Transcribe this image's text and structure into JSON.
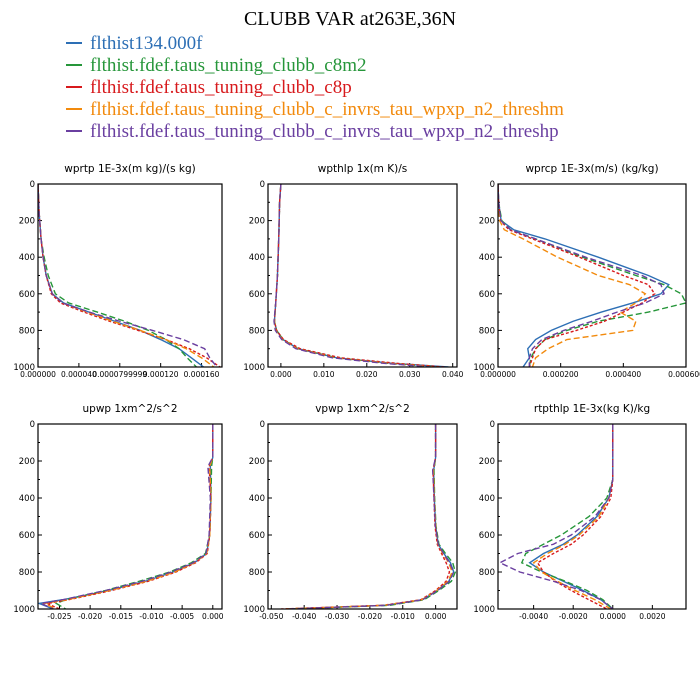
{
  "title": "CLUBB VAR at263E,36N",
  "colors": {
    "blue": "#2d6fb5",
    "green": "#26963a",
    "red": "#d7191c",
    "orange": "#f28a0d",
    "purple": "#6a3fa0"
  },
  "legend": [
    {
      "label": "flthist134.000f",
      "color": "#2d6fb5"
    },
    {
      "label": "flthist.fdef.taus_tuning_clubb_c8m2",
      "color": "#26963a"
    },
    {
      "label": "flthist.fdef.taus_tuning_clubb_c8p",
      "color": "#d7191c"
    },
    {
      "label": "flthist.fdef.taus_tuning_clubb_c_invrs_tau_wpxp_n2_threshm",
      "color": "#f28a0d"
    },
    {
      "label": "flthist.fdef.taus_tuning_clubb_c_invrs_tau_wpxp_n2_threshp",
      "color": "#6a3fa0"
    }
  ],
  "chart_data": [
    {
      "type": "line",
      "title": "wprtp  1E-3x(m kg)/(s kg)",
      "xlim": [
        0,
        0.00018
      ],
      "ylim": [
        1000,
        0
      ],
      "yticks": [
        "0",
        "200",
        "400",
        "600",
        "800",
        "1000"
      ],
      "xticks": [
        0,
        4e-05,
        8e-05,
        0.00012,
        0.00016
      ],
      "xtick_labels": [
        "0.000000",
        "0.000040",
        "0.0000799999",
        "0.000120",
        "0.000160"
      ],
      "y": [
        0,
        150,
        300,
        400,
        500,
        600,
        650,
        700,
        750,
        800,
        850,
        900,
        950,
        1000
      ],
      "series": [
        {
          "color": "#2d6fb5",
          "values": [
            0,
            1e-06,
            3e-06,
            5e-06,
            8e-06,
            1.4e-05,
            2.5e-05,
            5e-05,
            7.5e-05,
            0.0001,
            0.00012,
            0.000138,
            0.00015,
            0.000162
          ]
        },
        {
          "color": "#26963a",
          "values": [
            0,
            1e-06,
            3e-06,
            6e-06,
            1e-05,
            1.7e-05,
            3e-05,
            5.8e-05,
            8.5e-05,
            0.000108,
            0.000125,
            0.000138,
            0.000146,
            0.000155
          ]
        },
        {
          "color": "#d7191c",
          "values": [
            0,
            1e-06,
            3e-06,
            5e-06,
            8e-06,
            1.3e-05,
            2.2e-05,
            4.5e-05,
            7e-05,
            9.8e-05,
            0.000125,
            0.000148,
            0.000165,
            0.000178
          ]
        },
        {
          "color": "#f28a0d",
          "values": [
            0,
            1e-06,
            3e-06,
            5e-06,
            8e-06,
            1.4e-05,
            2.4e-05,
            4.8e-05,
            7.3e-05,
            0.0001,
            0.000125,
            0.000145,
            0.00016,
            0.000172
          ]
        },
        {
          "color": "#6a3fa0",
          "values": [
            0,
            1e-06,
            3e-06,
            5e-06,
            8e-06,
            1.4e-05,
            2.4e-05,
            5e-05,
            8e-05,
            0.000112,
            0.000142,
            0.000163,
            0.000168,
            0.000175
          ]
        }
      ]
    },
    {
      "type": "line",
      "title": "wpthlp  1x(m K)/s",
      "xlim": [
        -0.003,
        0.041
      ],
      "ylim": [
        1000,
        0
      ],
      "yticks": [
        "0",
        "200",
        "400",
        "600",
        "800",
        "1000"
      ],
      "xticks": [
        0,
        0.01,
        0.02,
        0.03,
        0.04
      ],
      "xtick_labels": [
        "0.000",
        "0.010",
        "0.020",
        "0.030",
        "0.040"
      ],
      "y": [
        0,
        100,
        300,
        500,
        650,
        750,
        800,
        850,
        900,
        950,
        980,
        1000
      ],
      "series": [
        {
          "color": "#2d6fb5",
          "values": [
            0,
            -0.0003,
            -0.0005,
            -0.0008,
            -0.0012,
            -0.0015,
            -0.001,
            0.0005,
            0.004,
            0.013,
            0.026,
            0.039
          ]
        },
        {
          "color": "#26963a",
          "values": [
            0,
            -0.0003,
            -0.0005,
            -0.0008,
            -0.0012,
            -0.0015,
            -0.001,
            0.0005,
            0.004,
            0.013,
            0.025,
            0.037
          ]
        },
        {
          "color": "#d7191c",
          "values": [
            0,
            -0.0003,
            -0.0005,
            -0.0008,
            -0.0012,
            -0.0015,
            -0.001,
            0.0006,
            0.0045,
            0.014,
            0.027,
            0.038
          ]
        },
        {
          "color": "#f28a0d",
          "values": [
            0,
            -0.0003,
            -0.0005,
            -0.0008,
            -0.0012,
            -0.0015,
            -0.0012,
            0.0003,
            0.0038,
            0.0125,
            0.025,
            0.036
          ]
        },
        {
          "color": "#6a3fa0",
          "values": [
            0,
            -0.0003,
            -0.0005,
            -0.0008,
            -0.0012,
            -0.0016,
            -0.0013,
            0.0002,
            0.0035,
            0.012,
            0.024,
            0.035
          ]
        }
      ]
    },
    {
      "type": "line",
      "title": "wprcp  1E-3x(m/s) (kg/kg)",
      "xlim": [
        0,
        0.0006
      ],
      "ylim": [
        1000,
        0
      ],
      "yticks": [
        "0",
        "200",
        "400",
        "600",
        "800",
        "1000"
      ],
      "xticks": [
        0,
        0.0002,
        0.0004,
        0.0006
      ],
      "xtick_labels": [
        "0.000000",
        "0.000200",
        "0.000400",
        "0.000600"
      ],
      "y": [
        0,
        100,
        200,
        250,
        300,
        400,
        500,
        550,
        600,
        650,
        700,
        750,
        800,
        850,
        900,
        950,
        1000
      ],
      "series": [
        {
          "color": "#2d6fb5",
          "values": [
            0,
            2e-06,
            1e-05,
            5e-05,
            0.00015,
            0.00032,
            0.00048,
            0.000545,
            0.00052,
            0.00043,
            0.00033,
            0.00024,
            0.00017,
            0.00012,
            9.5e-05,
            0.0001,
            8e-05
          ]
        },
        {
          "color": "#26963a",
          "values": [
            0,
            2e-06,
            1.2e-05,
            4e-05,
            0.00012,
            0.00027,
            0.00044,
            0.00053,
            0.000585,
            0.0006,
            0.00048,
            0.00032,
            0.00022,
            0.00015,
            0.00012,
            0.000105,
            0.0001
          ]
        },
        {
          "color": "#d7191c",
          "values": [
            0,
            2e-06,
            8e-06,
            3.5e-05,
            0.00011,
            0.00026,
            0.0004,
            0.00048,
            0.0005,
            0.00046,
            0.0004,
            0.00034,
            0.00025,
            0.00015,
            0.00012,
            0.00011,
            0.0001
          ]
        },
        {
          "color": "#f28a0d",
          "values": [
            0,
            1e-06,
            5e-06,
            2e-05,
            8e-05,
            0.00019,
            0.00032,
            0.00042,
            0.00047,
            0.00044,
            0.00039,
            0.00044,
            0.00043,
            0.00022,
            0.00016,
            0.00012,
            0.00011
          ]
        },
        {
          "color": "#6a3fa0",
          "values": [
            0,
            2e-06,
            9e-06,
            4e-05,
            0.00012,
            0.00028,
            0.00046,
            0.00052,
            0.00053,
            0.00047,
            0.00038,
            0.0003,
            0.00021,
            0.00014,
            0.00011,
            0.0001,
            0.0001
          ]
        }
      ]
    },
    {
      "type": "line",
      "title": "upwp  1xm^2/s^2",
      "xlim": [
        -0.0285,
        0.0015
      ],
      "ylim": [
        1000,
        0
      ],
      "yticks": [
        "0",
        "200",
        "400",
        "600",
        "800",
        "1000"
      ],
      "xticks": [
        -0.025,
        -0.02,
        -0.015,
        -0.01,
        -0.005,
        0
      ],
      "xtick_labels": [
        "-0.025",
        "-0.020",
        "-0.015",
        "-0.010",
        "-0.005",
        "0.000"
      ],
      "y": [
        0,
        180,
        230,
        400,
        600,
        700,
        750,
        800,
        850,
        900,
        950,
        970,
        1000
      ],
      "series": [
        {
          "color": "#2d6fb5",
          "values": [
            0,
            0,
            -0.0004,
            -0.0003,
            -0.0005,
            -0.001,
            -0.003,
            -0.0065,
            -0.011,
            -0.017,
            -0.0245,
            -0.0283,
            -0.026
          ]
        },
        {
          "color": "#26963a",
          "values": [
            0,
            0,
            -0.0002,
            -0.0003,
            -0.0005,
            -0.0012,
            -0.0035,
            -0.007,
            -0.012,
            -0.0175,
            -0.024,
            -0.0255,
            -0.024
          ]
        },
        {
          "color": "#d7191c",
          "values": [
            0,
            0,
            -0.0006,
            -0.0003,
            -0.0005,
            -0.0009,
            -0.0028,
            -0.006,
            -0.0105,
            -0.0165,
            -0.0235,
            -0.027,
            -0.025
          ]
        },
        {
          "color": "#f28a0d",
          "values": [
            0,
            0,
            -0.0005,
            -0.0003,
            -0.0005,
            -0.001,
            -0.003,
            -0.0062,
            -0.0108,
            -0.0168,
            -0.0238,
            -0.0275,
            -0.0255
          ]
        },
        {
          "color": "#6a3fa0",
          "values": [
            0,
            0,
            -0.0008,
            -0.0004,
            -0.0006,
            -0.0011,
            -0.0032,
            -0.0068,
            -0.0115,
            -0.0175,
            -0.0245,
            -0.028,
            -0.026
          ]
        }
      ]
    },
    {
      "type": "line",
      "title": "vpwp  1xm^2/s^2",
      "xlim": [
        -0.051,
        0.0065
      ],
      "ylim": [
        1000,
        0
      ],
      "yticks": [
        "0",
        "200",
        "400",
        "600",
        "800",
        "1000"
      ],
      "xticks": [
        -0.05,
        -0.04,
        -0.03,
        -0.02,
        -0.01,
        0
      ],
      "xtick_labels": [
        "-0.050",
        "-0.040",
        "-0.030",
        "-0.020",
        "-0.010",
        "0.000"
      ],
      "y": [
        0,
        180,
        250,
        400,
        550,
        650,
        700,
        750,
        800,
        850,
        900,
        950,
        980,
        1000
      ],
      "series": [
        {
          "color": "#2d6fb5",
          "values": [
            0,
            0,
            -0.0006,
            -0.0004,
            0,
            0.0008,
            0.0025,
            0.0045,
            0.0055,
            0.004,
            0.0005,
            -0.004,
            -0.015,
            -0.045
          ]
        },
        {
          "color": "#26963a",
          "values": [
            0,
            0,
            -0.0005,
            -0.0003,
            0.0001,
            0.001,
            0.003,
            0.0052,
            0.006,
            0.0048,
            0.001,
            -0.0035,
            -0.014,
            -0.044
          ]
        },
        {
          "color": "#d7191c",
          "values": [
            0,
            0,
            -0.0008,
            -0.0005,
            -0.0002,
            0.0005,
            0.0018,
            0.0032,
            0.0042,
            0.0032,
            0,
            -0.0045,
            -0.016,
            -0.047
          ]
        },
        {
          "color": "#f28a0d",
          "values": [
            0,
            0,
            -0.0007,
            -0.0004,
            0,
            0.0007,
            0.0022,
            0.004,
            0.005,
            0.0038,
            0.0003,
            -0.0042,
            -0.0155,
            -0.046
          ]
        },
        {
          "color": "#6a3fa0",
          "values": [
            0,
            0,
            -0.0009,
            -0.0005,
            -0.0001,
            0.0008,
            0.0024,
            0.0042,
            0.0055,
            0.0042,
            0.0006,
            -0.004,
            -0.015,
            -0.045
          ]
        }
      ]
    },
    {
      "type": "line",
      "title": "rtpthlp  1E-3x(kg K)/kg",
      "xlim": [
        -0.0058,
        0.0037
      ],
      "ylim": [
        1000,
        0
      ],
      "yticks": [
        "0",
        "200",
        "400",
        "600",
        "800",
        "1000"
      ],
      "xticks": [
        -0.004,
        -0.002,
        0,
        0.002
      ],
      "xtick_labels": [
        "-0.0040",
        "-0.0020",
        "0.0000",
        "0.0020"
      ],
      "y": [
        0,
        300,
        400,
        500,
        600,
        650,
        700,
        750,
        800,
        850,
        900,
        950,
        1000
      ],
      "series": [
        {
          "color": "#2d6fb5",
          "values": [
            0,
            0,
            -0.0002,
            -0.0008,
            -0.0018,
            -0.0025,
            -0.0035,
            -0.0042,
            -0.0035,
            -0.0025,
            -0.0015,
            -0.0006,
            0
          ]
        },
        {
          "color": "#26963a",
          "values": [
            0,
            0,
            -0.0003,
            -0.0012,
            -0.0026,
            -0.0035,
            -0.0044,
            -0.0046,
            -0.0036,
            -0.0024,
            -0.0013,
            -0.0005,
            0
          ]
        },
        {
          "color": "#d7191c",
          "values": [
            0,
            0,
            -0.0001,
            -0.0006,
            -0.0015,
            -0.0021,
            -0.003,
            -0.0038,
            -0.0035,
            -0.0029,
            -0.0021,
            -0.0012,
            -0.0003
          ]
        },
        {
          "color": "#f28a0d",
          "values": [
            0,
            0,
            -0.0002,
            -0.0007,
            -0.0017,
            -0.0024,
            -0.0033,
            -0.004,
            -0.0036,
            -0.0028,
            -0.0019,
            -0.0009,
            -0.0001
          ]
        },
        {
          "color": "#6a3fa0",
          "values": [
            0,
            0,
            -0.0002,
            -0.0009,
            -0.0021,
            -0.003,
            -0.0048,
            -0.0057,
            -0.0047,
            -0.003,
            -0.0016,
            -0.0006,
            0
          ]
        }
      ]
    }
  ]
}
